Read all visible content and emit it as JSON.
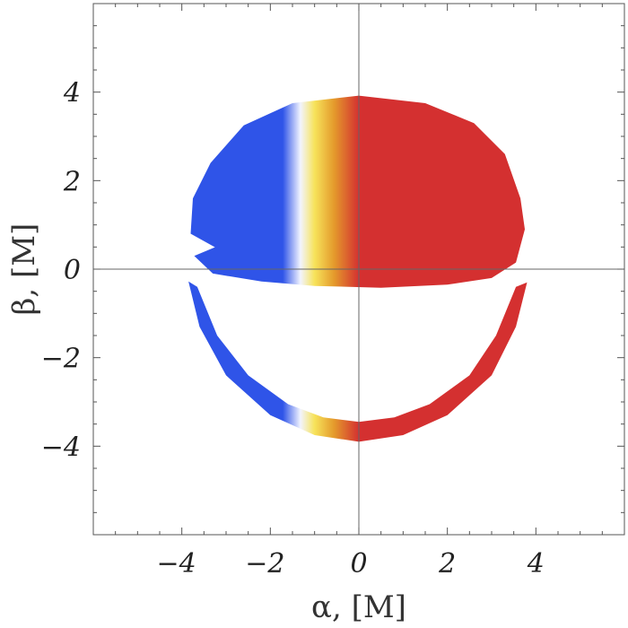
{
  "chart_data": {
    "type": "scatter",
    "title": "",
    "xlabel": "α, [M]",
    "ylabel": "β, [M]",
    "xlim": [
      -6,
      6
    ],
    "ylim": [
      -6,
      6
    ],
    "x_ticks": [
      -4,
      -2,
      0,
      2,
      4
    ],
    "y_ticks": [
      -4,
      -2,
      0,
      2,
      4
    ],
    "x_tick_labels": [
      "−4",
      "−2",
      "0",
      "2",
      "4"
    ],
    "y_tick_labels": [
      "−4",
      "−2",
      "0",
      "2",
      "4"
    ],
    "grid": false,
    "zero_lines": true,
    "colors": {
      "blue": "#2f54e8",
      "white": "#f2f4ff",
      "yellow": "#f7e35a",
      "orange": "#e49a2c",
      "red": "#d43030"
    },
    "series": [
      {
        "outer": [
          [
            -3.8,
            0.8
          ],
          [
            -3.75,
            1.6
          ],
          [
            -3.35,
            2.4
          ],
          [
            -2.6,
            3.25
          ],
          [
            -1.5,
            3.75
          ],
          [
            0,
            3.92
          ],
          [
            1.5,
            3.75
          ],
          [
            2.6,
            3.3
          ],
          [
            3.3,
            2.6
          ],
          [
            3.65,
            1.6
          ],
          [
            3.75,
            0.9
          ],
          [
            3.55,
            0.15
          ],
          [
            3.0,
            -0.2
          ],
          [
            2.0,
            -0.35
          ],
          [
            0.5,
            -0.42
          ],
          [
            -1.0,
            -0.38
          ],
          [
            -2.2,
            -0.28
          ],
          [
            -3.3,
            -0.1
          ],
          [
            -3.72,
            0.3
          ]
        ],
        "inner": [
          [
            -3.0,
            0.6
          ],
          [
            -2.9,
            1.4
          ],
          [
            -2.5,
            2.2
          ],
          [
            -1.8,
            2.95
          ],
          [
            -0.9,
            3.28
          ],
          [
            0,
            3.35
          ],
          [
            0.9,
            3.28
          ],
          [
            1.8,
            2.95
          ],
          [
            2.45,
            2.35
          ],
          [
            2.8,
            1.6
          ],
          [
            2.95,
            0.9
          ],
          [
            2.9,
            0.4
          ],
          [
            2.5,
            0.1
          ],
          [
            1.5,
            -0.12
          ],
          [
            0.5,
            -0.22
          ],
          [
            -0.5,
            -0.22
          ],
          [
            -1.5,
            -0.15
          ],
          [
            -2.4,
            0.05
          ],
          [
            -2.9,
            0.3
          ]
        ]
      },
      {
        "outer": [
          [
            -3.85,
            -0.28
          ],
          [
            -3.6,
            -1.3
          ],
          [
            -3.0,
            -2.4
          ],
          [
            -2.0,
            -3.3
          ],
          [
            -1.0,
            -3.75
          ],
          [
            0,
            -3.9
          ],
          [
            1.0,
            -3.75
          ],
          [
            2.0,
            -3.3
          ],
          [
            3.0,
            -2.4
          ],
          [
            3.55,
            -1.3
          ],
          [
            3.8,
            -0.3
          ]
        ],
        "inner": [
          [
            3.55,
            -0.4
          ],
          [
            3.1,
            -1.5
          ],
          [
            2.5,
            -2.4
          ],
          [
            1.6,
            -3.05
          ],
          [
            0.8,
            -3.35
          ],
          [
            0,
            -3.45
          ],
          [
            -0.8,
            -3.35
          ],
          [
            -1.6,
            -3.05
          ],
          [
            -2.5,
            -2.4
          ],
          [
            -3.2,
            -1.5
          ],
          [
            -3.65,
            -0.4
          ]
        ]
      }
    ]
  }
}
